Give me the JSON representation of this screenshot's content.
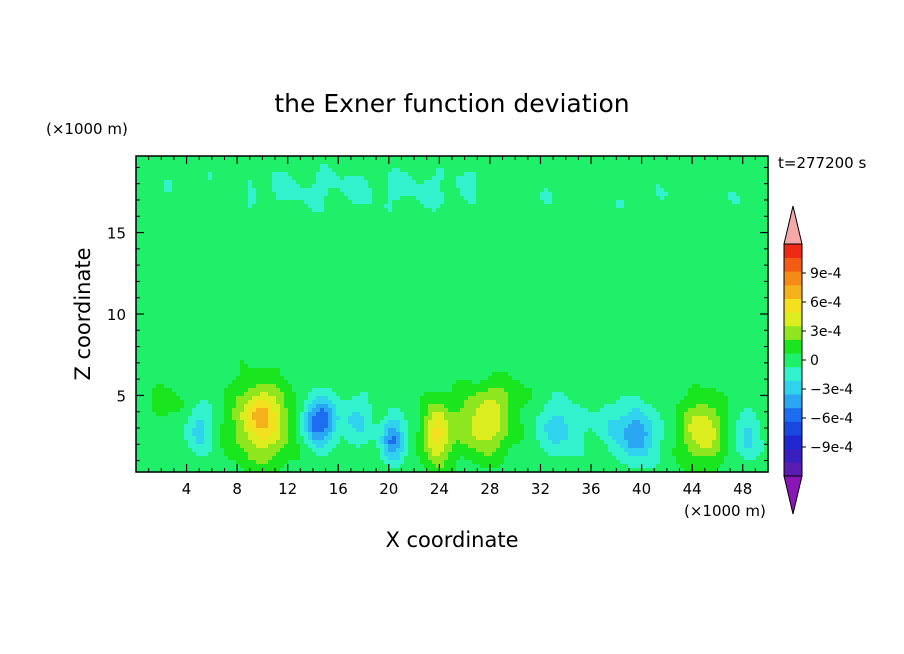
{
  "chart_data": {
    "type": "heatmap",
    "title": "the Exner function deviation",
    "xlabel": "X coordinate",
    "ylabel": "Z coordinate",
    "x_unit": "(×1000 m)",
    "y_unit": "(×1000 m)",
    "time_label": "t=277200 s",
    "xlim": [
      0,
      50
    ],
    "ylim": [
      0.3,
      19.7
    ],
    "x_ticks": [
      4,
      8,
      12,
      16,
      20,
      24,
      28,
      32,
      36,
      40,
      44,
      48
    ],
    "y_ticks": [
      5,
      10,
      15
    ],
    "colorbar": {
      "levels": [
        -0.0012,
        -0.00105,
        -0.0009,
        -0.00075,
        -0.0006,
        -0.00045,
        -0.0003,
        -0.00015,
        0,
        0.00015,
        0.0003,
        0.00045,
        0.0006,
        0.00075,
        0.0009,
        0.00105,
        0.0012
      ],
      "colors": [
        "#5a1db0",
        "#3a1fbf",
        "#1e2ad0",
        "#1848e0",
        "#1c6df0",
        "#2ba6f3",
        "#2fd3ee",
        "#31f2cc",
        "#1ff06a",
        "#19e61e",
        "#8ee61e",
        "#dcee1e",
        "#f3e01e",
        "#f5b11a",
        "#f58a17",
        "#f25c14",
        "#ee2a14"
      ],
      "under_color": "#8a16b8",
      "over_color": "#f5a8a8",
      "tick_values": [
        0.0009,
        0.0006,
        0.0003,
        0,
        -0.0003,
        -0.0006,
        -0.0009
      ],
      "tick_labels": [
        "9e-4",
        "6e-4",
        "3e-4",
        "0",
        "−3e-4",
        "−6e-4",
        "−9e-4"
      ]
    },
    "field": {
      "background": 8e-05,
      "bands": [
        {
          "z": 18.0,
          "z_width": 1.4,
          "x_from": 0,
          "x_to": 27,
          "value": -5e-05
        },
        {
          "z": 17.2,
          "z_width": 1.8,
          "x_from": 9,
          "x_to": 50,
          "value": -5e-05
        },
        {
          "z": 14.5,
          "z_width": 1.2,
          "x_from": 0,
          "x_to": 50,
          "value": 2e-05
        },
        {
          "z": 10.5,
          "z_width": 1.6,
          "x_from": 10,
          "x_to": 50,
          "value": -4e-05
        },
        {
          "z": 8.0,
          "z_width": 1.0,
          "x_from": 0,
          "x_to": 50,
          "value": 2e-05
        }
      ],
      "blobs": [
        {
          "x": 10.0,
          "z": 3.3,
          "sx": 2.3,
          "sz": 2.4,
          "value": 0.00055
        },
        {
          "x": 9.8,
          "z": 3.9,
          "sx": 1.2,
          "sz": 1.2,
          "value": 0.00022
        },
        {
          "x": 14.5,
          "z": 3.4,
          "sx": 1.3,
          "sz": 1.4,
          "value": -0.0007
        },
        {
          "x": 20.3,
          "z": 2.3,
          "sx": 0.9,
          "sz": 1.3,
          "value": -0.00055
        },
        {
          "x": 23.8,
          "z": 2.6,
          "sx": 1.0,
          "sz": 2.0,
          "value": 0.00058
        },
        {
          "x": 27.5,
          "z": 3.2,
          "sx": 2.3,
          "sz": 1.9,
          "value": 0.00048
        },
        {
          "x": 33.5,
          "z": 3.0,
          "sx": 1.8,
          "sz": 1.6,
          "value": -0.0003
        },
        {
          "x": 39.7,
          "z": 2.6,
          "sx": 1.4,
          "sz": 1.6,
          "value": -0.00052
        },
        {
          "x": 44.8,
          "z": 2.8,
          "sx": 1.6,
          "sz": 1.9,
          "value": 0.00052
        },
        {
          "x": 5.0,
          "z": 3.0,
          "sx": 1.0,
          "sz": 1.5,
          "value": -0.0003
        },
        {
          "x": 17.5,
          "z": 3.5,
          "sx": 1.2,
          "sz": 1.5,
          "value": -0.00025
        },
        {
          "x": 37.5,
          "z": 3.2,
          "sx": 1.0,
          "sz": 1.5,
          "value": -0.00022
        },
        {
          "x": 48.5,
          "z": 2.5,
          "sx": 1.0,
          "sz": 1.5,
          "value": -0.00028
        },
        {
          "x": 2.5,
          "z": 4.5,
          "sx": 1.5,
          "sz": 1.0,
          "value": 0.00015
        },
        {
          "x": 29.0,
          "z": 5.0,
          "sx": 2.0,
          "sz": 1.0,
          "value": 0.00016
        }
      ]
    }
  }
}
